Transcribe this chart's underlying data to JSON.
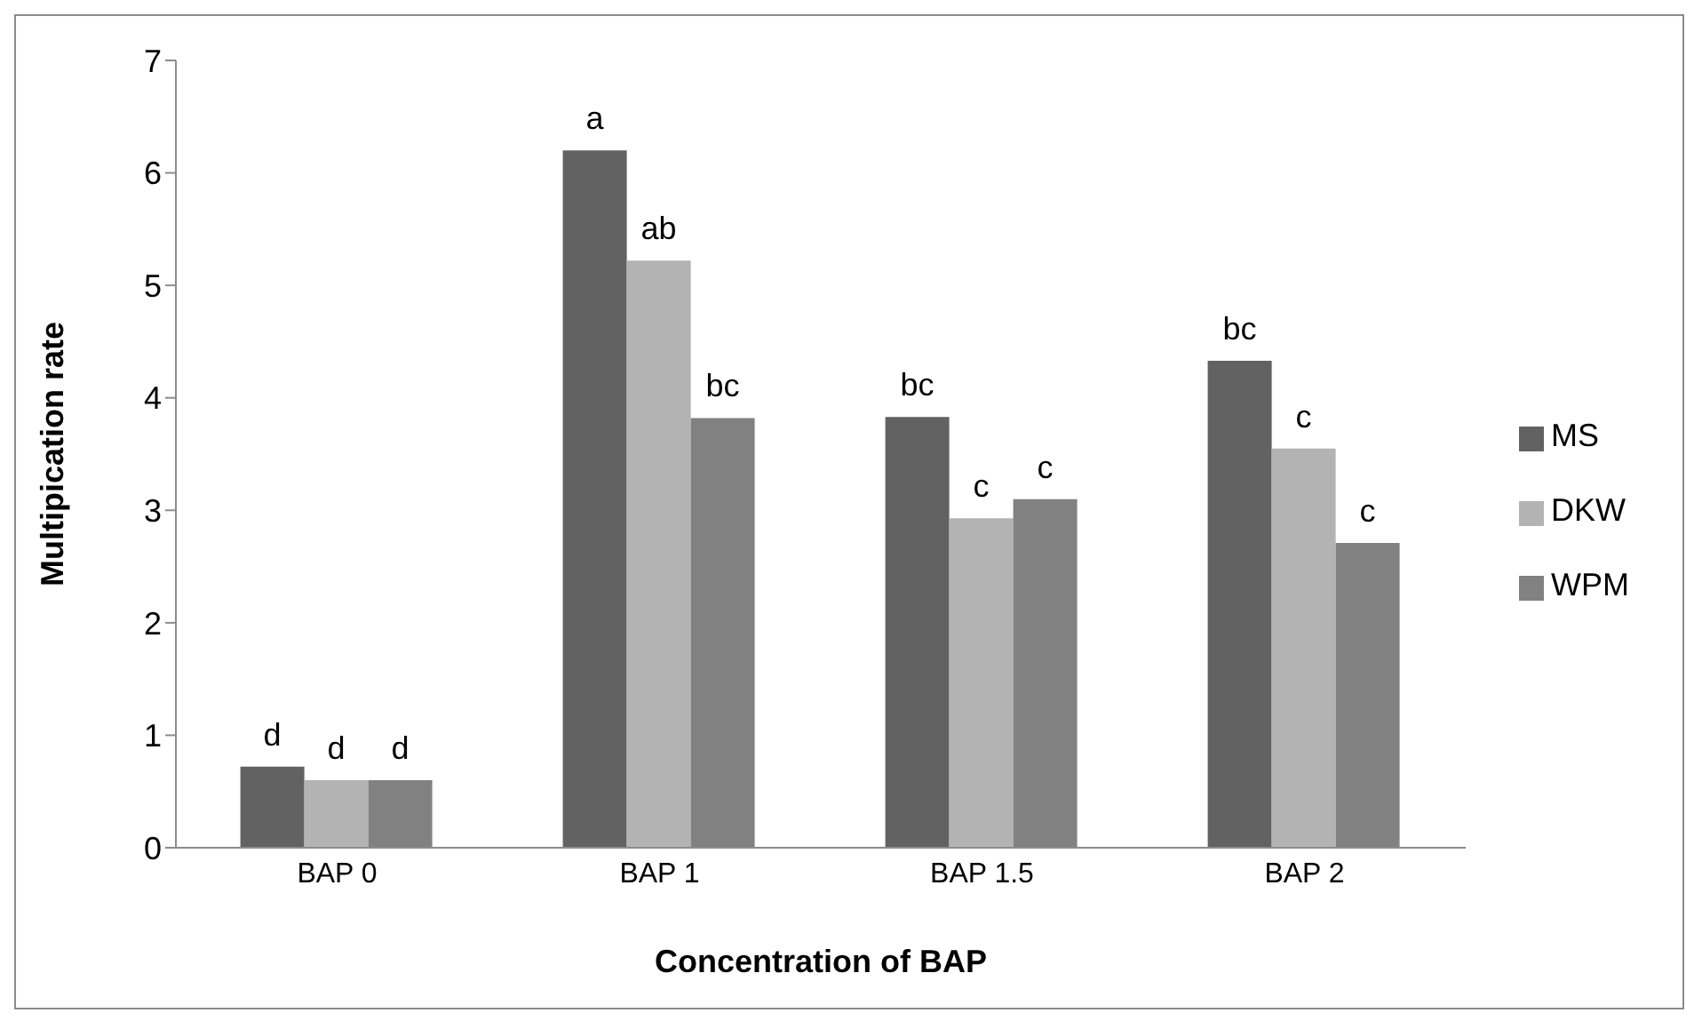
{
  "chart_data": {
    "type": "bar",
    "xlabel": "Concentration of BAP",
    "ylabel": "Multipication rate",
    "categories": [
      "BAP 0",
      "BAP 1",
      "BAP 1.5",
      "BAP 2"
    ],
    "series": [
      {
        "name": "MS",
        "color": "#626262",
        "values": [
          0.72,
          6.2,
          3.83,
          4.33
        ],
        "value_labels": [
          "d",
          "a",
          "bc",
          "bc"
        ]
      },
      {
        "name": "DKW",
        "color": "#b3b3b3",
        "values": [
          0.6,
          5.22,
          2.93,
          3.55
        ],
        "value_labels": [
          "d",
          "ab",
          "c",
          "c"
        ]
      },
      {
        "name": "WPM",
        "color": "#818181",
        "values": [
          0.6,
          3.82,
          3.1,
          2.71
        ],
        "value_labels": [
          "d",
          "bc",
          "c",
          "c"
        ]
      }
    ],
    "ylim": [
      0,
      7
    ],
    "yticks": [
      0,
      1,
      2,
      3,
      4,
      5,
      6,
      7
    ],
    "grid": false,
    "legend": "right"
  }
}
